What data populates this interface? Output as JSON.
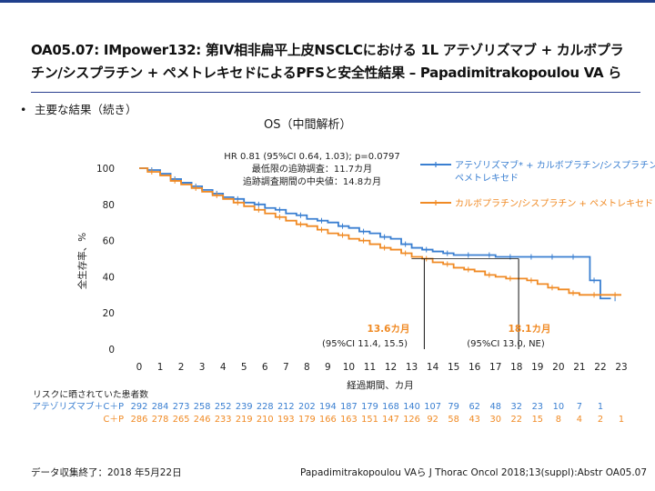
{
  "slide": {
    "title_line1": "OA05.07: IMpower132: 第IV相非扁平上皮NSCLCにおける 1L アテゾリズマブ + カルボプラ",
    "title_line2": "チン/シスプラチン + ペメトレキセドによるPFSと安全性結果 – Papadimitrakopoulou VA ら",
    "bullet": "主要な結果（続き）",
    "bullet_marker": "•",
    "os_label": "OS（中間解析）",
    "footnote_left": "データ収集終了：2018 年5月22日",
    "footnote_right": "Papadimitrakopoulou VAら J Thorac Oncol 2018;13(suppl):Abstr OA05.07",
    "topbar_color": "#1f3f8c"
  },
  "chart_data": {
    "type": "line",
    "ylabel": "全生存率、%",
    "xlabel": "経過期間、カ月",
    "x_ticks": [
      0,
      1,
      2,
      3,
      4,
      5,
      6,
      7,
      8,
      9,
      10,
      11,
      12,
      13,
      14,
      15,
      16,
      17,
      18,
      19,
      20,
      21,
      22,
      23
    ],
    "y_ticks": [
      0,
      20,
      40,
      60,
      80,
      100
    ],
    "xlim": [
      0,
      23
    ],
    "ylim": [
      0,
      100
    ],
    "stats": {
      "line1": "HR 0.81 (95%CI 0.64, 1.03); p=0.0797",
      "line2": "最低限の追跡調査：11.7カ月",
      "line3": "追跡調査期間の中央値：14.8カ月"
    },
    "series": [
      {
        "name": "アテゾリズマブ* + カルボプラチン/シスプラチン + ペメトレキセド",
        "legend_line1": "アテゾリズマブ* + カルボプラチン/シスプラチン +",
        "legend_line2": "ペメトレキセド",
        "color": "#3a7fd1",
        "x": [
          0,
          0.4,
          1,
          1.5,
          2,
          2.5,
          3,
          3.5,
          4,
          4.5,
          5,
          5.5,
          6,
          6.5,
          7,
          7.5,
          8,
          8.5,
          9,
          9.5,
          10,
          10.5,
          11,
          11.5,
          12,
          12.5,
          13,
          13.5,
          14,
          14.5,
          15,
          15.5,
          16,
          16.5,
          17,
          17.5,
          18,
          18.5,
          19,
          19.5,
          20,
          20.5,
          21,
          21.5,
          22,
          22.5
        ],
        "y": [
          100,
          99,
          97,
          94,
          92,
          90,
          88,
          86,
          84,
          83,
          81,
          80,
          78,
          77,
          75,
          74,
          72,
          71,
          70,
          68,
          67,
          65,
          64,
          62,
          61,
          58,
          56,
          55,
          54,
          53,
          52,
          52,
          52,
          52,
          51,
          51,
          51,
          51,
          51,
          51,
          51,
          51,
          51,
          38,
          28,
          28
        ]
      },
      {
        "name": "カルボプラチン/シスプラチン + ペメトレキセド",
        "legend_line1": "カルボプラチン/シスプラチン + ペメトレキセド",
        "color": "#f08a24",
        "x": [
          0,
          0.4,
          1,
          1.5,
          2,
          2.5,
          3,
          3.5,
          4,
          4.5,
          5,
          5.5,
          6,
          6.5,
          7,
          7.5,
          8,
          8.5,
          9,
          9.5,
          10,
          10.5,
          11,
          11.5,
          12,
          12.5,
          13,
          13.5,
          14,
          14.5,
          15,
          15.5,
          16,
          16.5,
          17,
          17.5,
          18,
          18.5,
          19,
          19.5,
          20,
          20.5,
          21,
          21.5,
          22,
          22.5,
          23
        ],
        "y": [
          100,
          98,
          96,
          93,
          91,
          89,
          87,
          85,
          83,
          81,
          79,
          77,
          75,
          73,
          71,
          69,
          68,
          66,
          64,
          63,
          61,
          60,
          58,
          56,
          55,
          53,
          51,
          50,
          48,
          47,
          45,
          44,
          43,
          41,
          40,
          39,
          39,
          38,
          36,
          34,
          33,
          31,
          30,
          30,
          30,
          30,
          30
        ]
      }
    ],
    "medians": [
      {
        "value": 13.6,
        "label": "13.6カ月",
        "ci": "(95%CI 11.4, 15.5)",
        "at_survival": 50
      },
      {
        "value": 18.1,
        "label": "18.1カ月",
        "ci": "(95%CI 13.0, NE)",
        "at_survival": 50
      }
    ],
    "risk_table": {
      "header": "リスクに晒されていた患者数",
      "rows": [
        {
          "label": "アテゾリズマブ＋C＋P",
          "color": "#3a7fd1",
          "values": [
            "292",
            "284",
            "273",
            "258",
            "252",
            "239",
            "228",
            "212",
            "202",
            "194",
            "187",
            "179",
            "168",
            "140",
            "107",
            "79",
            "62",
            "48",
            "32",
            "23",
            "10",
            "7",
            "1",
            ""
          ]
        },
        {
          "label": "C＋P",
          "color": "#f08a24",
          "values": [
            "286",
            "278",
            "265",
            "246",
            "233",
            "219",
            "210",
            "193",
            "179",
            "166",
            "163",
            "151",
            "147",
            "126",
            "92",
            "58",
            "43",
            "30",
            "22",
            "15",
            "8",
            "4",
            "2",
            "1"
          ]
        }
      ]
    }
  }
}
